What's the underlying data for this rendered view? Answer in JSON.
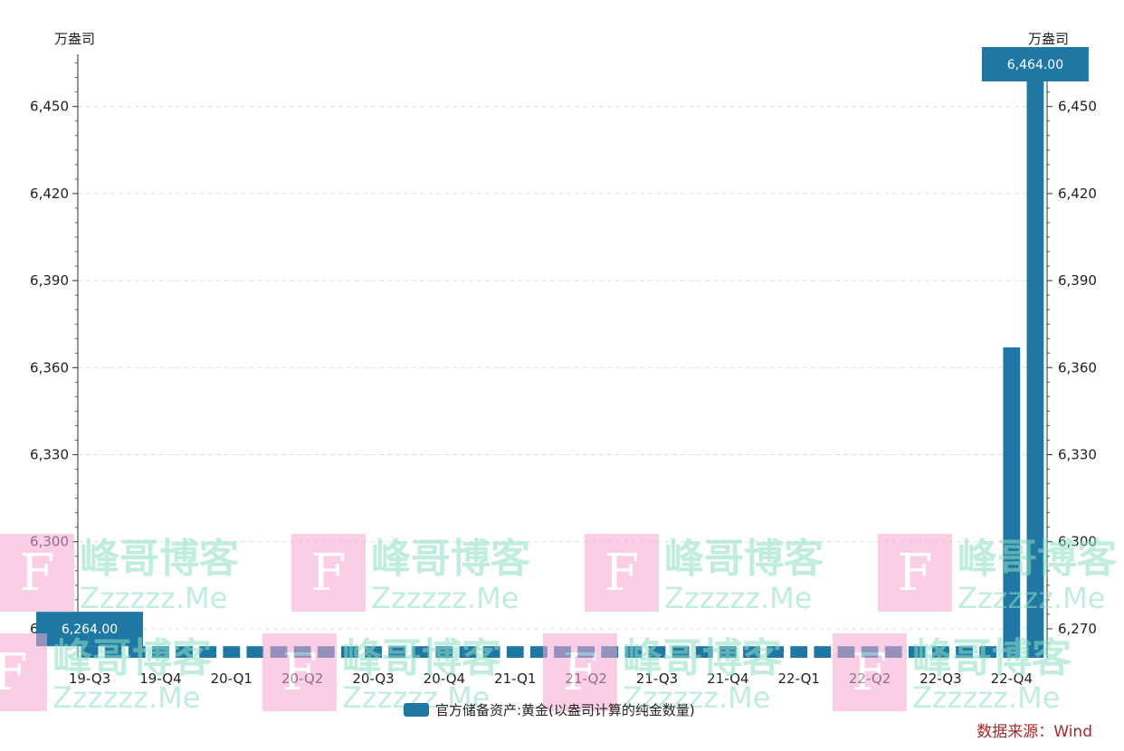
{
  "chart_data": {
    "type": "bar",
    "unit_left": "万盎司",
    "unit_right": "万盎司",
    "ylim": [
      6260,
      6468
    ],
    "yticks": [
      6270,
      6300,
      6330,
      6360,
      6390,
      6420,
      6450
    ],
    "ytick_labels": [
      "6,270",
      "6,300",
      "6,330",
      "6,360",
      "6,390",
      "6,420",
      "6,450"
    ],
    "categories": [
      "2019-07",
      "2019-08",
      "2019-09",
      "2019-10",
      "2019-11",
      "2019-12",
      "2020-01",
      "2020-02",
      "2020-03",
      "2020-04",
      "2020-05",
      "2020-06",
      "2020-07",
      "2020-08",
      "2020-09",
      "2020-10",
      "2020-11",
      "2020-12",
      "2021-01",
      "2021-02",
      "2021-03",
      "2021-04",
      "2021-05",
      "2021-06",
      "2021-07",
      "2021-08",
      "2021-09",
      "2021-10",
      "2021-11",
      "2021-12",
      "2022-01",
      "2022-02",
      "2022-03",
      "2022-04",
      "2022-05",
      "2022-06",
      "2022-07",
      "2022-08",
      "2022-09",
      "2022-10",
      "2022-11"
    ],
    "x_tick_labels": [
      {
        "index": 0,
        "label": "19-Q3"
      },
      {
        "index": 3,
        "label": "19-Q4"
      },
      {
        "index": 6,
        "label": "20-Q1"
      },
      {
        "index": 9,
        "label": "20-Q2"
      },
      {
        "index": 12,
        "label": "20-Q3"
      },
      {
        "index": 15,
        "label": "20-Q4"
      },
      {
        "index": 18,
        "label": "21-Q1"
      },
      {
        "index": 21,
        "label": "21-Q2"
      },
      {
        "index": 24,
        "label": "21-Q3"
      },
      {
        "index": 27,
        "label": "21-Q4"
      },
      {
        "index": 30,
        "label": "22-Q1"
      },
      {
        "index": 33,
        "label": "22-Q2"
      },
      {
        "index": 36,
        "label": "22-Q3"
      },
      {
        "index": 39,
        "label": "22-Q4"
      }
    ],
    "series": [
      {
        "name": "官方储备资产:黄金(以盎司计算的纯金数量)",
        "color": "#1f77a4",
        "values": [
          6264,
          6264,
          6264,
          6264,
          6264,
          6264,
          6264,
          6264,
          6264,
          6264,
          6264,
          6264,
          6264,
          6264,
          6264,
          6264,
          6264,
          6264,
          6264,
          6264,
          6264,
          6264,
          6264,
          6264,
          6264,
          6264,
          6264,
          6264,
          6264,
          6264,
          6264,
          6264,
          6264,
          6264,
          6264,
          6264,
          6264,
          6264,
          6264,
          6367,
          6464
        ]
      }
    ],
    "data_labels": [
      {
        "index": 0,
        "text": "6,264.00"
      },
      {
        "index": 40,
        "text": "6,464.00"
      }
    ],
    "grid": true,
    "legend_position": "bottom"
  },
  "source": "数据来源：Wind",
  "watermark": {
    "letter": "F",
    "title": "峰哥博客",
    "subtitle": "Zzzzzz.Me"
  }
}
